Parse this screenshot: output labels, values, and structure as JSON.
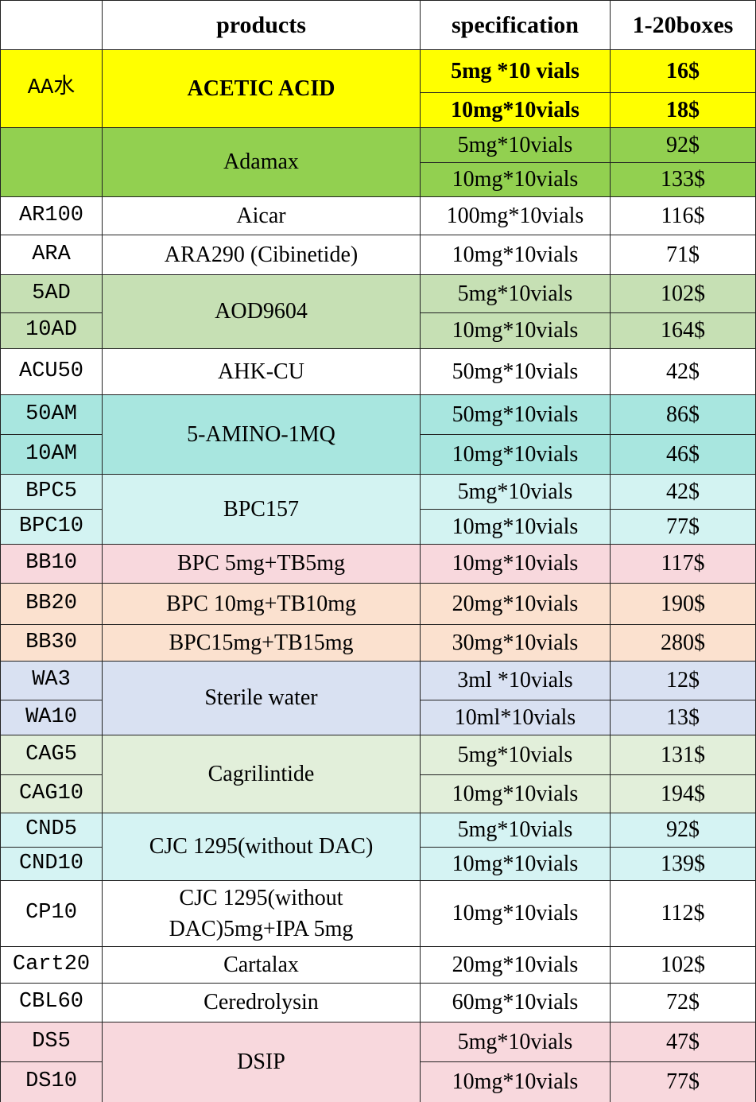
{
  "header": {
    "products": "products",
    "specification": "specification",
    "price": "1-20boxes"
  },
  "groups": [
    {
      "codes": [
        "AA水"
      ],
      "product": "ACETIC  ACID",
      "color": "#ffff00",
      "bold": true,
      "specs": [
        {
          "spec": "5mg *10 vials",
          "price": "16$"
        },
        {
          "spec": "10mg*10vials",
          "price": "18$"
        }
      ]
    },
    {
      "product": "Adamax",
      "color": "#92d050",
      "specs": [
        {
          "spec": "5mg*10vials",
          "price": "92$"
        },
        {
          "spec": "10mg*10vials",
          "price": "133$"
        }
      ]
    },
    {
      "codes": [
        "AR100"
      ],
      "product": "Aicar",
      "color": "#ffffff",
      "specs": [
        {
          "spec": "100mg*10vials",
          "price": "116$"
        }
      ]
    },
    {
      "codes": [
        "ARA"
      ],
      "product": "ARA290 (Cibinetide)",
      "color": "#ffffff",
      "specs": [
        {
          "spec": "10mg*10vials",
          "price": "71$"
        }
      ]
    },
    {
      "codes": [
        "5AD",
        "10AD"
      ],
      "product": "AOD9604",
      "color": "#c6e0b4",
      "specs": [
        {
          "spec": "5mg*10vials",
          "price": "102$"
        },
        {
          "spec": "10mg*10vials",
          "price": "164$"
        }
      ]
    },
    {
      "codes": [
        "ACU50"
      ],
      "product": "AHK-CU",
      "color": "#ffffff",
      "specs": [
        {
          "spec": "50mg*10vials",
          "price": "42$"
        }
      ]
    },
    {
      "codes": [
        "50AM",
        "10AM"
      ],
      "product": "5-AMINO-1MQ",
      "color": "#a8e6df",
      "specs": [
        {
          "spec": "50mg*10vials",
          "price": "86$"
        },
        {
          "spec": "10mg*10vials",
          "price": "46$"
        }
      ]
    },
    {
      "codes": [
        "BPC5",
        "BPC10"
      ],
      "product": "BPC157",
      "color": "#d3f3f2",
      "specs": [
        {
          "spec": "5mg*10vials",
          "price": "42$"
        },
        {
          "spec": "10mg*10vials",
          "price": "77$"
        }
      ]
    },
    {
      "codes": [
        "BB10"
      ],
      "product": "BPC 5mg+TB5mg",
      "color": "#f8d8dd",
      "specs": [
        {
          "spec": "10mg*10vials",
          "price": "117$"
        }
      ]
    },
    {
      "codes": [
        "BB20"
      ],
      "product": "BPC 10mg+TB10mg",
      "color": "#fbe1cf",
      "specs": [
        {
          "spec": "20mg*10vials",
          "price": "190$"
        }
      ]
    },
    {
      "codes": [
        "BB30"
      ],
      "product": "BPC15mg+TB15mg",
      "color": "#fbe1cf",
      "specs": [
        {
          "spec": "30mg*10vials",
          "price": "280$"
        }
      ]
    },
    {
      "codes": [
        "WA3",
        "WA10"
      ],
      "product": "Sterile  water",
      "color": "#d9e1f2",
      "specs": [
        {
          "spec": "3ml *10vials",
          "price": "12$"
        },
        {
          "spec": "10ml*10vials",
          "price": "13$"
        }
      ]
    },
    {
      "codes": [
        "CAG5",
        "CAG10"
      ],
      "product": "Cagrilintide",
      "color": "#e2efda",
      "specs": [
        {
          "spec": "5mg*10vials",
          "price": "131$"
        },
        {
          "spec": "10mg*10vials",
          "price": "194$"
        }
      ]
    },
    {
      "codes": [
        "CND5",
        "CND10"
      ],
      "product": "CJC 1295(without DAC)",
      "color": "#d5f3f3",
      "specs": [
        {
          "spec": "5mg*10vials",
          "price": "92$"
        },
        {
          "spec": "10mg*10vials",
          "price": "139$"
        }
      ]
    },
    {
      "codes": [
        "CP10"
      ],
      "product": "CJC 1295(without DAC)5mg+IPA 5mg",
      "color": "#ffffff",
      "specs": [
        {
          "spec": "10mg*10vials",
          "price": "112$"
        }
      ]
    },
    {
      "codes": [
        "Cart20"
      ],
      "product": "Cartalax",
      "color": "#ffffff",
      "specs": [
        {
          "spec": "20mg*10vials",
          "price": "102$"
        }
      ]
    },
    {
      "codes": [
        "CBL60"
      ],
      "product": "Ceredrolysin",
      "color": "#ffffff",
      "specs": [
        {
          "spec": "60mg*10vials",
          "price": "72$"
        }
      ]
    },
    {
      "codes": [
        "DS5",
        "DS10"
      ],
      "product": "DSIP",
      "color": "#f8d8dd",
      "specs": [
        {
          "spec": "5mg*10vials",
          "price": "47$"
        },
        {
          "spec": "10mg*10vials",
          "price": "77$"
        }
      ]
    }
  ]
}
